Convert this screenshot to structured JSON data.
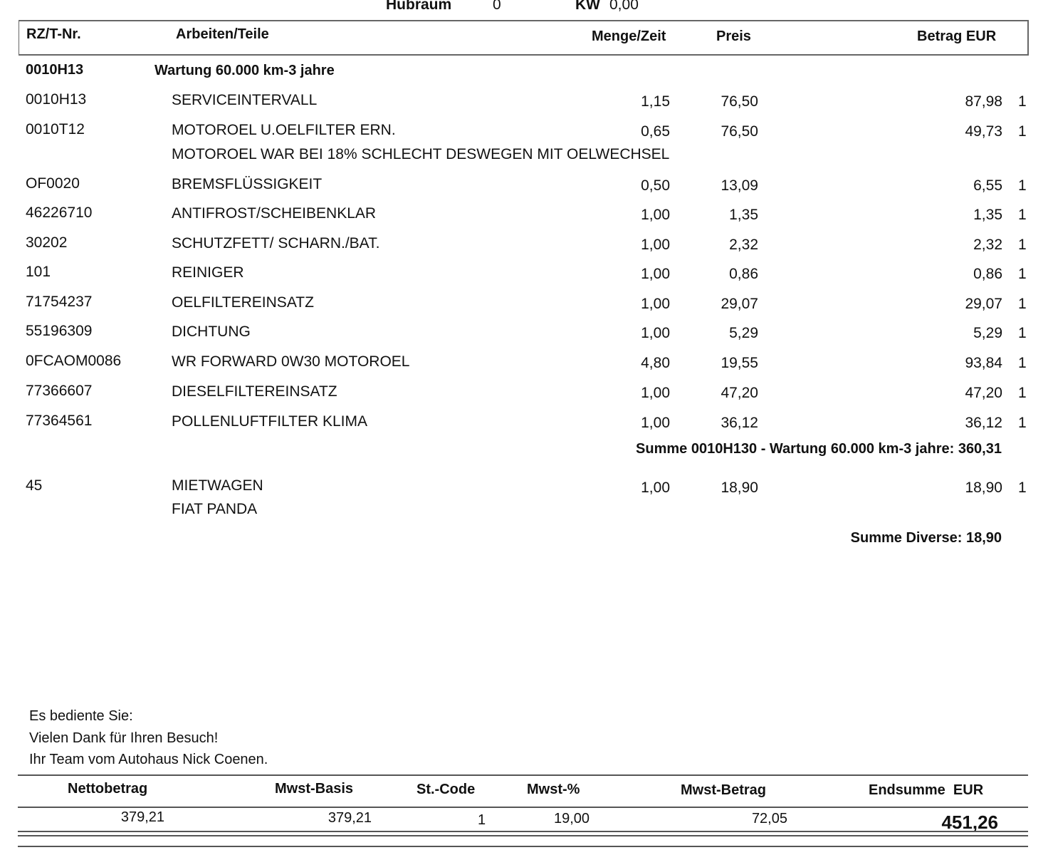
{
  "top": {
    "hubraum_label": "Hubraum",
    "hubraum_value": "0",
    "kw_label": "KW",
    "kw_value": "0,00"
  },
  "header": {
    "code": "RZ/T-Nr.",
    "desc": "Arbeiten/Teile",
    "qty": "Menge/Zeit",
    "price": "Preis",
    "amount": "Betrag EUR"
  },
  "group": {
    "code": "0010H13",
    "title": "Wartung 60.000 km-3 jahre"
  },
  "rows": [
    {
      "code": "0010H13",
      "desc": "SERVICEINTERVALL",
      "qty": "1,15",
      "price": "76,50",
      "amount": "87,98",
      "st": "1"
    },
    {
      "code": "0010T12",
      "desc": "MOTOROEL U.OELFILTER ERN.",
      "qty": "0,65",
      "price": "76,50",
      "amount": "49,73",
      "st": "1",
      "note": "MOTOROEL WAR BEI 18% SCHLECHT DESWEGEN MIT OELWECHSEL"
    },
    {
      "code": "OF0020",
      "desc": "BREMSFLÜSSIGKEIT",
      "qty": "0,50",
      "price": "13,09",
      "amount": "6,55",
      "st": "1"
    },
    {
      "code": "46226710",
      "desc": "ANTIFROST/SCHEIBENKLAR",
      "qty": "1,00",
      "price": "1,35",
      "amount": "1,35",
      "st": "1"
    },
    {
      "code": "30202",
      "desc": "SCHUTZFETT/ SCHARN./BAT.",
      "qty": "1,00",
      "price": "2,32",
      "amount": "2,32",
      "st": "1"
    },
    {
      "code": "101",
      "desc": "REINIGER",
      "qty": "1,00",
      "price": "0,86",
      "amount": "0,86",
      "st": "1"
    },
    {
      "code": "71754237",
      "desc": "OELFILTEREINSATZ",
      "qty": "1,00",
      "price": "29,07",
      "amount": "29,07",
      "st": "1"
    },
    {
      "code": "55196309",
      "desc": "DICHTUNG",
      "qty": "1,00",
      "price": "5,29",
      "amount": "5,29",
      "st": "1"
    },
    {
      "code": "0FCAOM0086",
      "desc": "WR FORWARD 0W30 MOTOROEL",
      "qty": "4,80",
      "price": "19,55",
      "amount": "93,84",
      "st": "1"
    },
    {
      "code": "77366607",
      "desc": "DIESELFILTEREINSATZ",
      "qty": "1,00",
      "price": "47,20",
      "amount": "47,20",
      "st": "1"
    },
    {
      "code": "77364561",
      "desc": "POLLENLUFTFILTER KLIMA",
      "qty": "1,00",
      "price": "36,12",
      "amount": "36,12",
      "st": "1"
    }
  ],
  "group_sum": "Summe 0010H130 - Wartung 60.000 km-3 jahre: 360,31",
  "misc": {
    "code": "45",
    "desc": "MIETWAGEN",
    "note": "FIAT PANDA",
    "qty": "1,00",
    "price": "18,90",
    "amount": "18,90",
    "st": "1"
  },
  "misc_sum": "Summe Diverse: 18,90",
  "footer": {
    "served": "Es bediente Sie:",
    "thanks": "Vielen Dank für Ihren Besuch!",
    "team": "Ihr Team vom Autohaus Nick Coenen."
  },
  "totals": {
    "headers": {
      "net": "Nettobetrag",
      "basis": "Mwst-Basis",
      "code": "St.-Code",
      "pct": "Mwst-%",
      "vat": "Mwst-Betrag",
      "total": "Endsumme  EUR"
    },
    "values": {
      "net": "379,21",
      "basis": "379,21",
      "code": "1",
      "pct": "19,00",
      "vat": "72,05",
      "total": "451,26"
    }
  }
}
